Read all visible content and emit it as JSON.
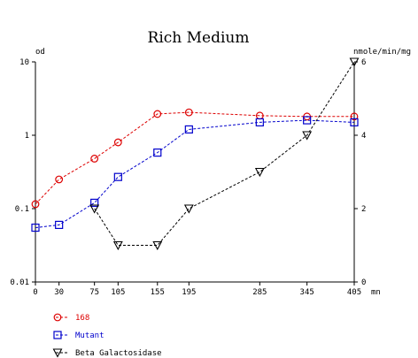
{
  "chart_data": {
    "type": "line",
    "title": "Rich Medium",
    "x_unit": "mn",
    "y_left_unit": "od",
    "y_right_unit": "nmole/min/mg",
    "x_ticks": [
      0,
      30,
      75,
      105,
      155,
      195,
      285,
      345,
      405
    ],
    "x_range": [
      0,
      405
    ],
    "y_left_scale": "log",
    "y_left_range": [
      0.01,
      10
    ],
    "y_left_ticks": [
      {
        "value": 10,
        "label": "10"
      },
      {
        "value": 1,
        "label": "1"
      },
      {
        "value": 0.1,
        "label": "0.1"
      },
      {
        "value": 0.01,
        "label": "0.01"
      }
    ],
    "y_right_range": [
      0,
      6
    ],
    "y_right_ticks": [
      {
        "value": 0,
        "label": "0"
      },
      {
        "value": 2,
        "label": "2"
      },
      {
        "value": 4,
        "label": "4"
      },
      {
        "value": 6,
        "label": "6"
      }
    ],
    "grid": false,
    "legend_position": "bottom-left",
    "series": [
      {
        "name": "168",
        "axis": "left",
        "color": "#dd0000",
        "marker": "circle",
        "points": [
          [
            0,
            0.115
          ],
          [
            30,
            0.25
          ],
          [
            75,
            0.48
          ],
          [
            105,
            0.8
          ],
          [
            155,
            1.95
          ],
          [
            195,
            2.05
          ],
          [
            285,
            1.85
          ],
          [
            345,
            1.8
          ],
          [
            405,
            1.8
          ]
        ]
      },
      {
        "name": "Mutant",
        "axis": "left",
        "color": "#0000cc",
        "marker": "square",
        "points": [
          [
            0,
            0.055
          ],
          [
            30,
            0.06
          ],
          [
            75,
            0.12
          ],
          [
            105,
            0.27
          ],
          [
            155,
            0.58
          ],
          [
            195,
            1.2
          ],
          [
            285,
            1.5
          ],
          [
            345,
            1.6
          ],
          [
            405,
            1.5
          ]
        ]
      },
      {
        "name": "Beta Galactosidase",
        "axis": "right",
        "color": "#000000",
        "marker": "triangle-down",
        "points": [
          [
            75,
            2.0
          ],
          [
            105,
            1.0
          ],
          [
            155,
            1.0
          ],
          [
            195,
            2.0
          ],
          [
            285,
            3.0
          ],
          [
            345,
            4.0
          ],
          [
            405,
            6.0
          ]
        ]
      }
    ]
  }
}
